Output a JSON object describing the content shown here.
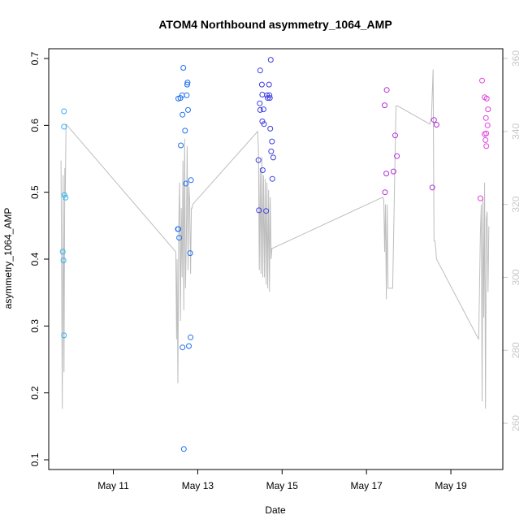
{
  "chart_data": {
    "type": "scatter",
    "title": "ATOM4 Northbound asymmetry_1064_AMP",
    "xlabel": "Date",
    "ylabel": "asymmetry_1064_AMP",
    "x_axis": {
      "unit": "days (May)",
      "range": [
        9.7,
        20.0
      ],
      "ticks": [
        {
          "value": 11,
          "label": "May 11"
        },
        {
          "value": 13,
          "label": "May 13"
        },
        {
          "value": 15,
          "label": "May 15"
        },
        {
          "value": 17,
          "label": "May 17"
        },
        {
          "value": 19,
          "label": "May 19"
        }
      ]
    },
    "y_axis": {
      "range": [
        0.1,
        0.7
      ],
      "ticks": [
        {
          "value": 0.1,
          "label": "0.1"
        },
        {
          "value": 0.2,
          "label": "0.2"
        },
        {
          "value": 0.3,
          "label": "0.3"
        },
        {
          "value": 0.4,
          "label": "0.4"
        },
        {
          "value": 0.5,
          "label": "0.5"
        },
        {
          "value": 0.6,
          "label": "0.6"
        },
        {
          "value": 0.7,
          "label": "0.7"
        }
      ]
    },
    "y2_axis": {
      "range": [
        250,
        360
      ],
      "color": "#c8c8c8",
      "ticks": [
        {
          "value": 260,
          "label": "260"
        },
        {
          "value": 280,
          "label": "280"
        },
        {
          "value": 300,
          "label": "300"
        },
        {
          "value": 320,
          "label": "320"
        },
        {
          "value": 340,
          "label": "340"
        },
        {
          "value": 360,
          "label": "360"
        }
      ]
    },
    "grid": false,
    "legend": "none",
    "points": [
      {
        "x": 9.83,
        "y": 0.621,
        "color": "#29b6f6"
      },
      {
        "x": 9.83,
        "y": 0.598,
        "color": "#29b6f6"
      },
      {
        "x": 9.84,
        "y": 0.496,
        "color": "#29b6f6"
      },
      {
        "x": 9.87,
        "y": 0.492,
        "color": "#29b6f6"
      },
      {
        "x": 9.8,
        "y": 0.411,
        "color": "#29b6f6"
      },
      {
        "x": 9.82,
        "y": 0.398,
        "color": "#29b6f6"
      },
      {
        "x": 9.83,
        "y": 0.286,
        "color": "#29b6f6"
      },
      {
        "x": 12.54,
        "y": 0.64,
        "color": "#1e6ff0"
      },
      {
        "x": 12.59,
        "y": 0.641,
        "color": "#1e6ff0"
      },
      {
        "x": 12.63,
        "y": 0.645,
        "color": "#1e6ff0"
      },
      {
        "x": 12.66,
        "y": 0.686,
        "color": "#1e6ff0"
      },
      {
        "x": 12.75,
        "y": 0.661,
        "color": "#1e6ff0"
      },
      {
        "x": 12.76,
        "y": 0.664,
        "color": "#1e6ff0"
      },
      {
        "x": 12.74,
        "y": 0.645,
        "color": "#1e6ff0"
      },
      {
        "x": 12.77,
        "y": 0.623,
        "color": "#1e6ff0"
      },
      {
        "x": 12.64,
        "y": 0.616,
        "color": "#1e6ff0"
      },
      {
        "x": 12.7,
        "y": 0.592,
        "color": "#1e6ff0"
      },
      {
        "x": 12.6,
        "y": 0.57,
        "color": "#1e6ff0"
      },
      {
        "x": 12.84,
        "y": 0.518,
        "color": "#1e6ff0"
      },
      {
        "x": 12.72,
        "y": 0.513,
        "color": "#1e6ff0"
      },
      {
        "x": 12.53,
        "y": 0.445,
        "color": "#1e6ff0"
      },
      {
        "x": 12.54,
        "y": 0.445,
        "color": "#1e6ff0"
      },
      {
        "x": 12.56,
        "y": 0.432,
        "color": "#1e6ff0"
      },
      {
        "x": 12.82,
        "y": 0.409,
        "color": "#1e6ff0"
      },
      {
        "x": 12.83,
        "y": 0.283,
        "color": "#1e6ff0"
      },
      {
        "x": 12.79,
        "y": 0.27,
        "color": "#1e6ff0"
      },
      {
        "x": 12.64,
        "y": 0.268,
        "color": "#1e6ff0"
      },
      {
        "x": 12.67,
        "y": 0.116,
        "color": "#1e6ff0"
      },
      {
        "x": 14.73,
        "y": 0.698,
        "color": "#3d3de0"
      },
      {
        "x": 14.48,
        "y": 0.682,
        "color": "#3d3de0"
      },
      {
        "x": 14.52,
        "y": 0.661,
        "color": "#3d3de0"
      },
      {
        "x": 14.69,
        "y": 0.661,
        "color": "#3d3de0"
      },
      {
        "x": 14.53,
        "y": 0.646,
        "color": "#3d3de0"
      },
      {
        "x": 14.64,
        "y": 0.645,
        "color": "#3d3de0"
      },
      {
        "x": 14.7,
        "y": 0.645,
        "color": "#3d3de0"
      },
      {
        "x": 14.66,
        "y": 0.641,
        "color": "#3d3de0"
      },
      {
        "x": 14.71,
        "y": 0.641,
        "color": "#3d3de0"
      },
      {
        "x": 14.47,
        "y": 0.633,
        "color": "#3d3de0"
      },
      {
        "x": 14.48,
        "y": 0.623,
        "color": "#3d3de0"
      },
      {
        "x": 14.56,
        "y": 0.624,
        "color": "#3d3de0"
      },
      {
        "x": 14.53,
        "y": 0.606,
        "color": "#3d3de0"
      },
      {
        "x": 14.57,
        "y": 0.602,
        "color": "#3d3de0"
      },
      {
        "x": 14.72,
        "y": 0.595,
        "color": "#3d3de0"
      },
      {
        "x": 14.76,
        "y": 0.576,
        "color": "#3d3de0"
      },
      {
        "x": 14.74,
        "y": 0.561,
        "color": "#3d3de0"
      },
      {
        "x": 14.79,
        "y": 0.552,
        "color": "#3d3de0"
      },
      {
        "x": 14.44,
        "y": 0.548,
        "color": "#3d3de0"
      },
      {
        "x": 14.54,
        "y": 0.533,
        "color": "#3d3de0"
      },
      {
        "x": 14.77,
        "y": 0.52,
        "color": "#3d3de0"
      },
      {
        "x": 14.45,
        "y": 0.473,
        "color": "#3d3de0"
      },
      {
        "x": 14.62,
        "y": 0.472,
        "color": "#3d3de0"
      },
      {
        "x": 17.48,
        "y": 0.653,
        "color": "#b030d8"
      },
      {
        "x": 17.43,
        "y": 0.63,
        "color": "#b030d8"
      },
      {
        "x": 17.68,
        "y": 0.585,
        "color": "#b030d8"
      },
      {
        "x": 17.72,
        "y": 0.554,
        "color": "#b030d8"
      },
      {
        "x": 17.64,
        "y": 0.531,
        "color": "#b030d8"
      },
      {
        "x": 17.47,
        "y": 0.528,
        "color": "#b030d8"
      },
      {
        "x": 17.44,
        "y": 0.5,
        "color": "#b030d8"
      },
      {
        "x": 18.6,
        "y": 0.608,
        "color": "#b030d8"
      },
      {
        "x": 18.66,
        "y": 0.601,
        "color": "#b030d8"
      },
      {
        "x": 18.56,
        "y": 0.507,
        "color": "#b030d8"
      },
      {
        "x": 19.74,
        "y": 0.667,
        "color": "#e040e0"
      },
      {
        "x": 19.8,
        "y": 0.642,
        "color": "#e040e0"
      },
      {
        "x": 19.85,
        "y": 0.64,
        "color": "#e040e0"
      },
      {
        "x": 19.88,
        "y": 0.624,
        "color": "#e040e0"
      },
      {
        "x": 19.83,
        "y": 0.611,
        "color": "#e040e0"
      },
      {
        "x": 19.87,
        "y": 0.6,
        "color": "#e040e0"
      },
      {
        "x": 19.84,
        "y": 0.588,
        "color": "#e040e0"
      },
      {
        "x": 19.8,
        "y": 0.587,
        "color": "#e040e0"
      },
      {
        "x": 19.82,
        "y": 0.578,
        "color": "#e040e0"
      },
      {
        "x": 19.84,
        "y": 0.569,
        "color": "#e040e0"
      },
      {
        "x": 19.7,
        "y": 0.491,
        "color": "#e040e0"
      }
    ],
    "secondary_series": {
      "axis": "y2",
      "color": "#bdbdbd",
      "x": [
        9.76,
        9.79,
        9.81,
        9.83,
        9.85,
        9.86,
        9.88,
        12.48,
        12.5,
        12.51,
        12.53,
        12.55,
        12.57,
        12.59,
        12.61,
        12.63,
        12.65,
        12.67,
        12.69,
        12.71,
        12.73,
        12.75,
        12.77,
        12.79,
        12.81,
        12.83,
        12.85,
        12.87,
        12.88,
        14.42,
        14.44,
        14.46,
        14.48,
        14.5,
        14.52,
        14.54,
        14.56,
        14.58,
        14.6,
        14.62,
        14.64,
        14.66,
        14.68,
        14.7,
        14.72,
        14.74,
        14.76,
        14.78,
        17.39,
        17.41,
        17.43,
        17.45,
        17.47,
        17.49,
        17.51,
        17.62,
        17.7,
        17.74,
        18.5,
        18.54,
        18.58,
        18.6,
        18.62,
        18.64,
        18.66,
        19.66,
        19.7,
        19.72,
        19.74,
        19.76,
        19.78,
        19.8,
        19.82,
        19.84,
        19.86,
        19.88,
        19.9
      ],
      "y": [
        332,
        264,
        328,
        274,
        330,
        322,
        342,
        307,
        283,
        305,
        271,
        314,
        326,
        288,
        319,
        300,
        332,
        291,
        338,
        297,
        310,
        336,
        302,
        325,
        321,
        301,
        319,
        319,
        320,
        340,
        335,
        302,
        330,
        301,
        333,
        300,
        328,
        300,
        327,
        298,
        326,
        297,
        324,
        296,
        322,
        305,
        308,
        308,
        322,
        321,
        307,
        320,
        294,
        320,
        297,
        297,
        347,
        347,
        342,
        344,
        357,
        310,
        310,
        308,
        305,
        283,
        312,
        320,
        266,
        322,
        289,
        326,
        264,
        316,
        318,
        296,
        314
      ]
    }
  }
}
